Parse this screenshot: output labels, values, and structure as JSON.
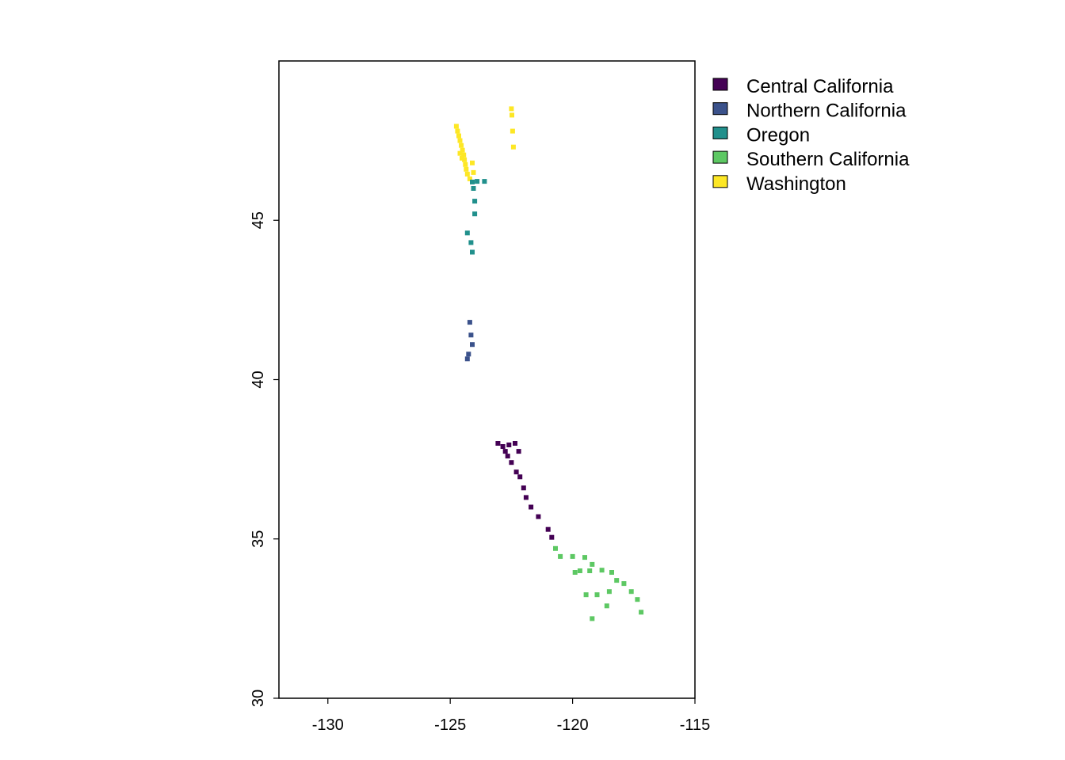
{
  "chart_data": {
    "type": "raster-map",
    "title": "",
    "xlabel": "",
    "ylabel": "",
    "xlim": [
      -132,
      -115
    ],
    "ylim": [
      30,
      50
    ],
    "x_ticks": [
      -130,
      -125,
      -120,
      -115
    ],
    "y_ticks": [
      30,
      35,
      40,
      45
    ],
    "x_tick_labels": [
      "-130",
      "-125",
      "-120",
      "-115"
    ],
    "y_tick_labels": [
      "30",
      "35",
      "40",
      "45"
    ],
    "grid": false,
    "legend_position": "right",
    "legend": [
      {
        "name": "Central California",
        "color": "#440154"
      },
      {
        "name": "Northern California",
        "color": "#3B528B"
      },
      {
        "name": "Oregon",
        "color": "#21908C"
      },
      {
        "name": "Southern California",
        "color": "#5DC863"
      },
      {
        "name": "Washington",
        "color": "#FDE725"
      }
    ],
    "series": [
      {
        "category": "Washington",
        "points": [
          [
            -124.75,
            47.95
          ],
          [
            -124.7,
            47.8
          ],
          [
            -124.65,
            47.65
          ],
          [
            -124.6,
            47.5
          ],
          [
            -124.55,
            47.35
          ],
          [
            -124.5,
            47.2
          ],
          [
            -124.45,
            47.05
          ],
          [
            -124.42,
            46.9
          ],
          [
            -124.38,
            46.75
          ],
          [
            -124.35,
            46.6
          ],
          [
            -124.3,
            46.45
          ],
          [
            -124.2,
            46.3
          ],
          [
            -124.1,
            46.8
          ],
          [
            -124.05,
            46.5
          ],
          [
            -122.5,
            48.5
          ],
          [
            -122.48,
            48.3
          ],
          [
            -122.45,
            47.8
          ],
          [
            -122.42,
            47.3
          ],
          [
            -124.6,
            47.1
          ],
          [
            -124.52,
            46.95
          ]
        ]
      },
      {
        "category": "Oregon",
        "points": [
          [
            -124.1,
            46.2
          ],
          [
            -123.9,
            46.22
          ],
          [
            -123.6,
            46.22
          ],
          [
            -124.05,
            46.0
          ],
          [
            -124.0,
            45.6
          ],
          [
            -124.0,
            45.2
          ],
          [
            -124.3,
            44.6
          ],
          [
            -124.15,
            44.3
          ],
          [
            -124.1,
            44.0
          ]
        ]
      },
      {
        "category": "Northern California",
        "points": [
          [
            -124.2,
            41.8
          ],
          [
            -124.15,
            41.4
          ],
          [
            -124.1,
            41.1
          ],
          [
            -124.25,
            40.8
          ],
          [
            -124.3,
            40.65
          ]
        ]
      },
      {
        "category": "Central California",
        "points": [
          [
            -123.05,
            38.0
          ],
          [
            -122.85,
            37.9
          ],
          [
            -122.75,
            37.75
          ],
          [
            -122.65,
            37.6
          ],
          [
            -122.5,
            37.4
          ],
          [
            -122.3,
            37.1
          ],
          [
            -122.15,
            36.95
          ],
          [
            -122.0,
            36.6
          ],
          [
            -121.9,
            36.3
          ],
          [
            -121.7,
            36.0
          ],
          [
            -121.4,
            35.7
          ],
          [
            -121.0,
            35.3
          ],
          [
            -120.85,
            35.05
          ],
          [
            -122.35,
            38.0
          ],
          [
            -122.2,
            37.75
          ],
          [
            -122.6,
            37.95
          ]
        ]
      },
      {
        "category": "Southern California",
        "points": [
          [
            -120.7,
            34.7
          ],
          [
            -120.5,
            34.45
          ],
          [
            -120.0,
            34.45
          ],
          [
            -119.5,
            34.42
          ],
          [
            -119.2,
            34.2
          ],
          [
            -118.8,
            34.02
          ],
          [
            -118.4,
            33.95
          ],
          [
            -118.2,
            33.7
          ],
          [
            -117.9,
            33.6
          ],
          [
            -117.6,
            33.35
          ],
          [
            -117.35,
            33.1
          ],
          [
            -117.2,
            32.7
          ],
          [
            -119.7,
            34.0
          ],
          [
            -119.9,
            33.95
          ],
          [
            -119.3,
            34.0
          ],
          [
            -119.45,
            33.25
          ],
          [
            -119.0,
            33.25
          ],
          [
            -119.2,
            32.5
          ],
          [
            -118.6,
            32.9
          ],
          [
            -118.5,
            33.35
          ]
        ]
      }
    ]
  }
}
